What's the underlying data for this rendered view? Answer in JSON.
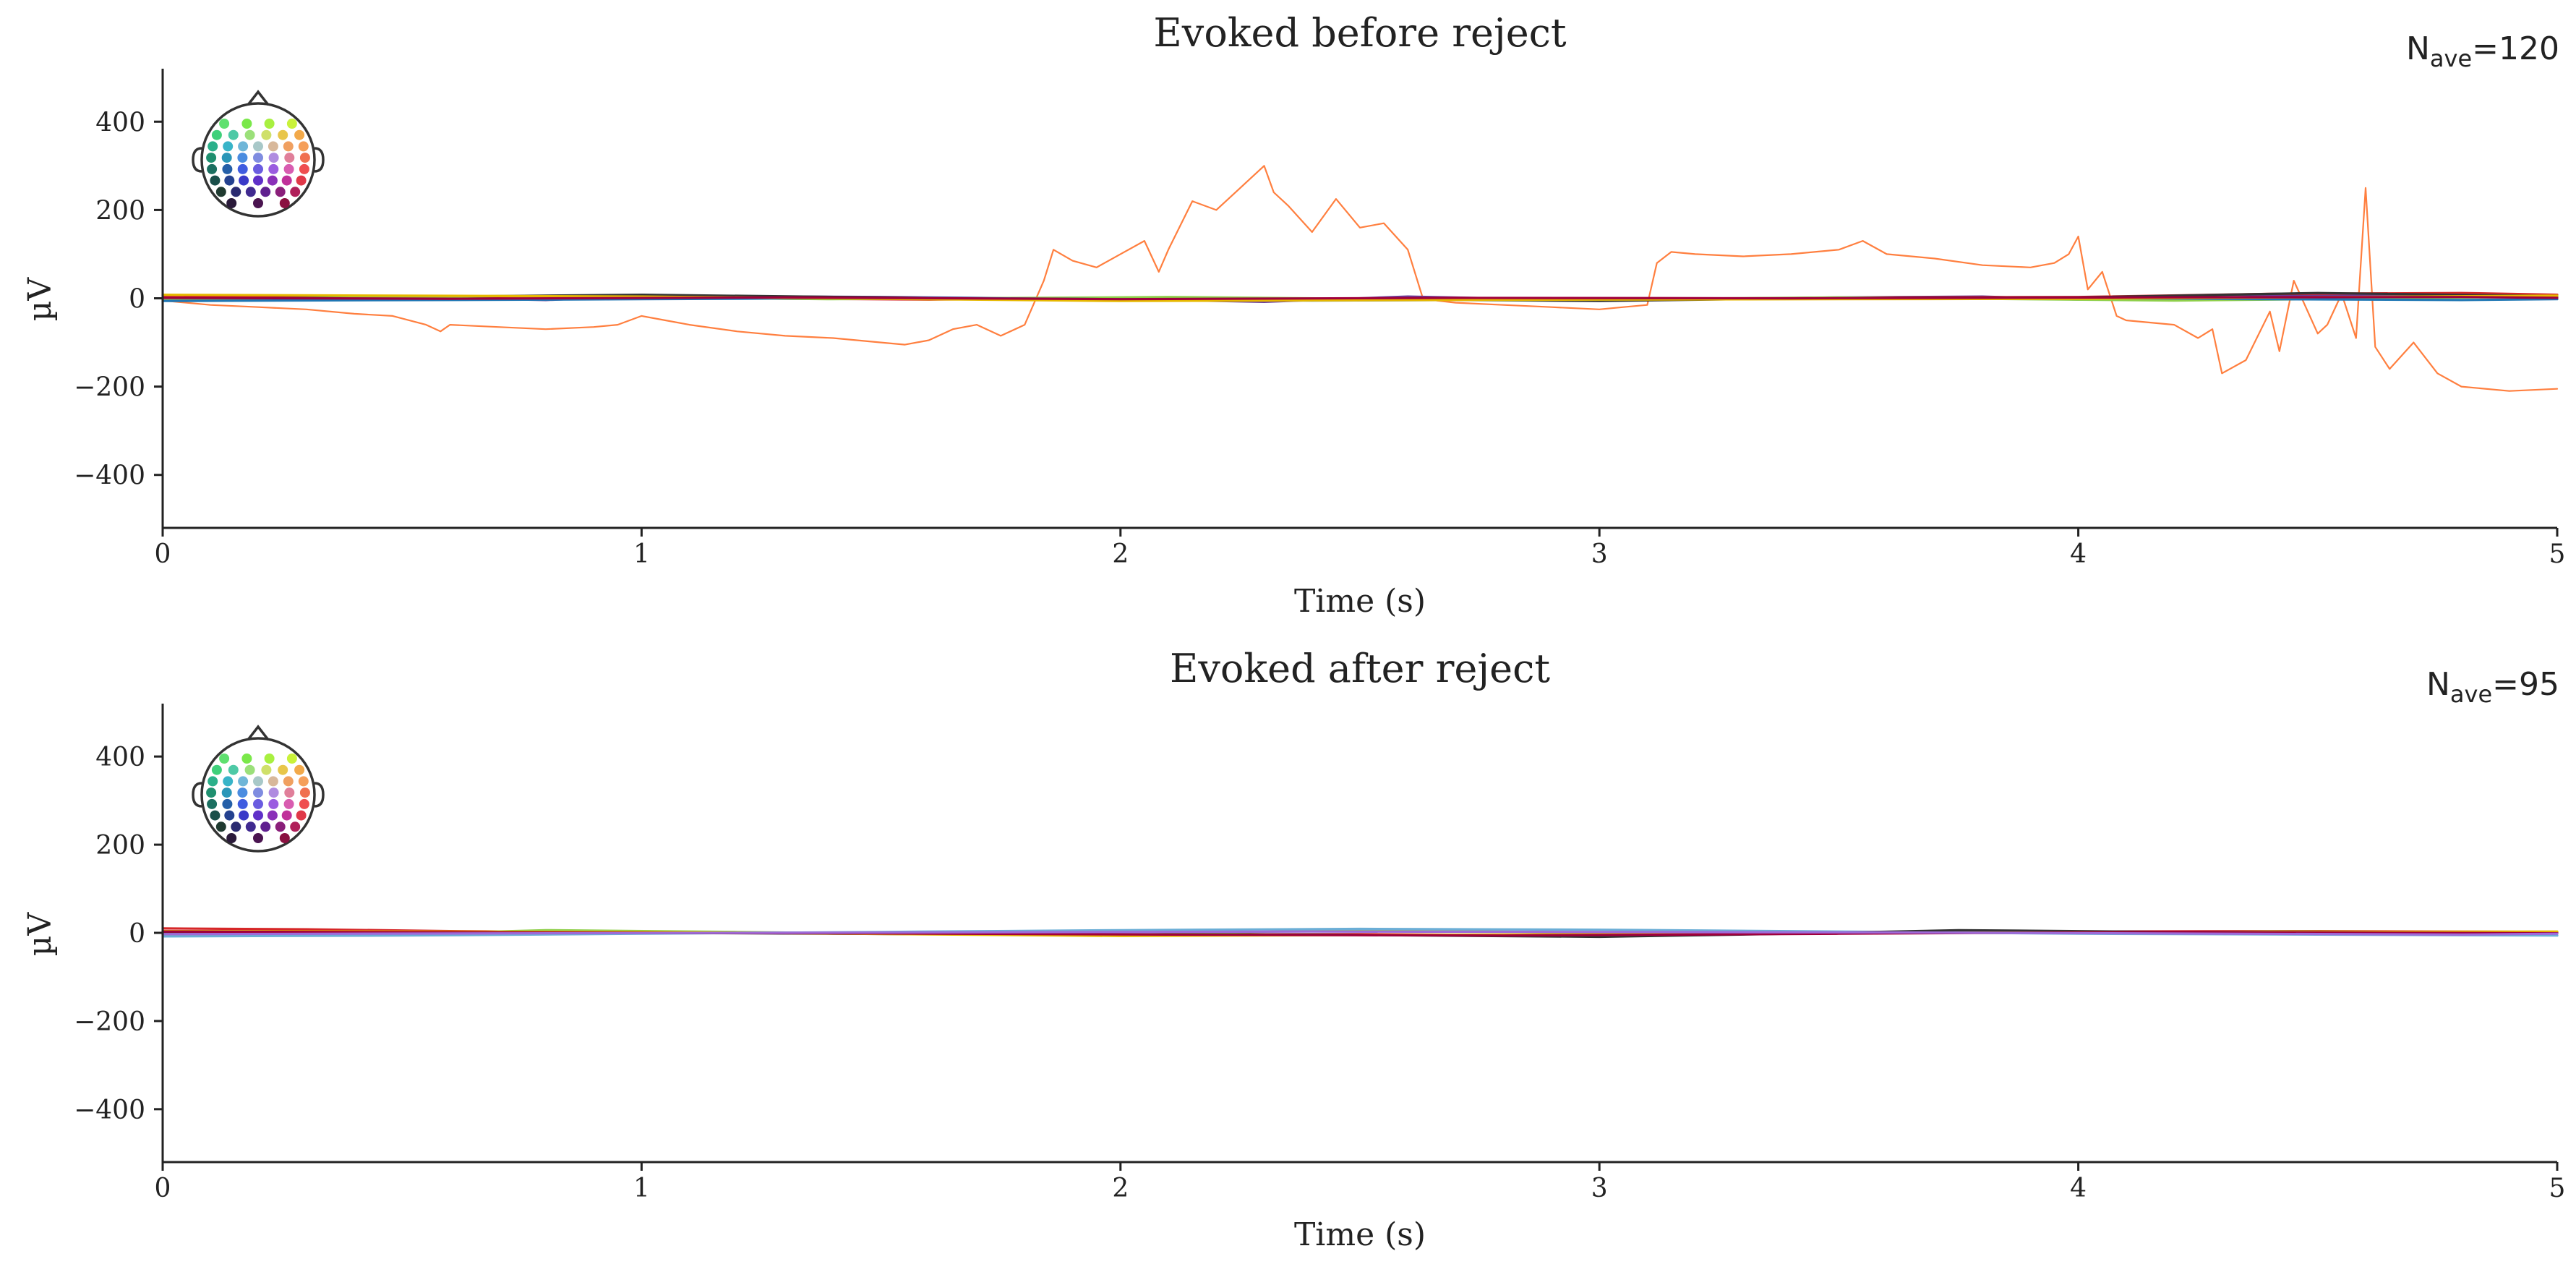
{
  "chart_data": [
    {
      "type": "line",
      "title": "Evoked before reject",
      "nave_label": "N",
      "nave_subscript": "ave",
      "nave_value": "=120",
      "xlabel": "Time (s)",
      "ylabel": "µV",
      "xlim": [
        0,
        5
      ],
      "ylim": [
        -520,
        520
      ],
      "xticks": [
        0,
        1,
        2,
        3,
        4,
        5
      ],
      "xtick_labels": [
        "0",
        "1",
        "2",
        "3",
        "4",
        "5"
      ],
      "yticks": [
        400,
        200,
        0,
        -200,
        -400
      ],
      "ytick_labels": [
        "400",
        "200",
        "0",
        "−200",
        "−400"
      ],
      "grid": false,
      "legend": "sensor-position inset, top-left",
      "series": [
        {
          "color": "#ff7f3f",
          "x": [
            0.0,
            0.1,
            0.2,
            0.3,
            0.4,
            0.48,
            0.55,
            0.58,
            0.6,
            0.7,
            0.8,
            0.9,
            0.95,
            1.0,
            1.05,
            1.1,
            1.2,
            1.3,
            1.4,
            1.5,
            1.55,
            1.6,
            1.65,
            1.7,
            1.75,
            1.8,
            1.84,
            1.86,
            1.9,
            1.95,
            2.0,
            2.05,
            2.08,
            2.1,
            2.15,
            2.2,
            2.25,
            2.3,
            2.32,
            2.35,
            2.4,
            2.45,
            2.5,
            2.55,
            2.6,
            2.63,
            2.66,
            2.7,
            2.8,
            2.9,
            3.0,
            3.05,
            3.1,
            3.12,
            3.15,
            3.2,
            3.3,
            3.4,
            3.5,
            3.55,
            3.6,
            3.7,
            3.8,
            3.9,
            3.95,
            3.98,
            4.0,
            4.02,
            4.05,
            4.08,
            4.1,
            4.2,
            4.25,
            4.28,
            4.3,
            4.35,
            4.4,
            4.42,
            4.45,
            4.5,
            4.52,
            4.55,
            4.58,
            4.6,
            4.62,
            4.65,
            4.7,
            4.75,
            4.8,
            4.9,
            5.0
          ],
          "y": [
            -5,
            -15,
            -20,
            -25,
            -35,
            -40,
            -60,
            -75,
            -60,
            -65,
            -70,
            -65,
            -60,
            -40,
            -50,
            -60,
            -75,
            -85,
            -90,
            -100,
            -105,
            -95,
            -70,
            -60,
            -85,
            -60,
            40,
            110,
            85,
            70,
            100,
            130,
            60,
            110,
            220,
            200,
            250,
            300,
            240,
            210,
            150,
            225,
            160,
            170,
            110,
            5,
            -5,
            -10,
            -15,
            -20,
            -25,
            -20,
            -15,
            80,
            105,
            100,
            95,
            100,
            110,
            130,
            100,
            90,
            75,
            70,
            80,
            100,
            140,
            20,
            60,
            -40,
            -50,
            -60,
            -90,
            -70,
            -170,
            -140,
            -30,
            -120,
            40,
            -80,
            -60,
            10,
            -90,
            250,
            -110,
            -160,
            -100,
            -170,
            -200,
            -210,
            -205
          ]
        },
        {
          "color": "#6a3d9a",
          "x": [
            0,
            0.5,
            0.8,
            1.0,
            1.5,
            2.0,
            2.3,
            2.6,
            3.0,
            3.5,
            3.8,
            4.0,
            4.3,
            4.6,
            5.0
          ],
          "y": [
            2,
            3,
            -4,
            5,
            3,
            -2,
            -8,
            4,
            -5,
            2,
            4,
            -3,
            8,
            6,
            3
          ]
        },
        {
          "color": "#d62728",
          "x": [
            0,
            0.4,
            0.8,
            1.2,
            1.6,
            2.0,
            2.4,
            2.8,
            3.2,
            3.6,
            4.0,
            4.4,
            4.8,
            5.0
          ],
          "y": [
            6,
            4,
            2,
            0,
            -3,
            1,
            -2,
            -4,
            -1,
            2,
            3,
            10,
            12,
            8
          ]
        },
        {
          "color": "#333333",
          "x": [
            0,
            0.5,
            1.0,
            1.5,
            2.0,
            2.5,
            3.0,
            3.5,
            4.0,
            4.5,
            5.0
          ],
          "y": [
            -2,
            3,
            8,
            2,
            -4,
            -2,
            -6,
            1,
            2,
            12,
            5
          ]
        },
        {
          "color": "#8ecf4a",
          "x": [
            0,
            0.7,
            1.4,
            2.1,
            2.8,
            3.5,
            4.2,
            5.0
          ],
          "y": [
            -3,
            5,
            -2,
            3,
            -4,
            2,
            -5,
            4
          ]
        },
        {
          "color": "#1f77b4",
          "x": [
            0,
            0.8,
            1.6,
            2.4,
            3.2,
            4.0,
            4.8,
            5.0
          ],
          "y": [
            -6,
            -3,
            1,
            -5,
            -2,
            0,
            -4,
            -2
          ]
        },
        {
          "color": "#e6b800",
          "x": [
            0,
            1.0,
            2.0,
            3.0,
            4.0,
            5.0
          ],
          "y": [
            8,
            4,
            -6,
            -3,
            -1,
            6
          ]
        },
        {
          "color": "#a0003c",
          "x": [
            0,
            0.6,
            1.3,
            2.0,
            2.7,
            3.4,
            4.1,
            4.8,
            5.0
          ],
          "y": [
            1,
            -1,
            2,
            -2,
            1,
            0,
            2,
            3,
            1
          ]
        }
      ]
    },
    {
      "type": "line",
      "title": "Evoked after reject",
      "nave_label": "N",
      "nave_subscript": "ave",
      "nave_value": "=95",
      "xlabel": "Time (s)",
      "ylabel": "µV",
      "xlim": [
        0,
        5
      ],
      "ylim": [
        -520,
        520
      ],
      "xticks": [
        0,
        1,
        2,
        3,
        4,
        5
      ],
      "xtick_labels": [
        "0",
        "1",
        "2",
        "3",
        "4",
        "5"
      ],
      "yticks": [
        400,
        200,
        0,
        -200,
        -400
      ],
      "ytick_labels": [
        "400",
        "200",
        "0",
        "−200",
        "−400"
      ],
      "grid": false,
      "legend": "sensor-position inset, top-left",
      "series": [
        {
          "color": "#d62728",
          "x": [
            0,
            0.3,
            0.6,
            1.0,
            1.5,
            2.0,
            2.5,
            3.0,
            3.5,
            4.0,
            4.5,
            5.0
          ],
          "y": [
            10,
            8,
            4,
            1,
            -2,
            -4,
            -3,
            -6,
            0,
            3,
            4,
            2
          ]
        },
        {
          "color": "#8ecf4a",
          "x": [
            0,
            0.4,
            0.8,
            1.2,
            1.6,
            2.0,
            2.4,
            2.8,
            3.2,
            3.6,
            4.0,
            4.4,
            4.8,
            5.0
          ],
          "y": [
            -4,
            -6,
            6,
            2,
            -3,
            -5,
            5,
            3,
            -2,
            1,
            -1,
            3,
            2,
            1
          ]
        },
        {
          "color": "#6baed6",
          "x": [
            0,
            0.5,
            1.0,
            1.5,
            2.0,
            2.5,
            3.0,
            3.5,
            4.0,
            4.5,
            5.0
          ],
          "y": [
            -8,
            -6,
            -2,
            2,
            6,
            9,
            7,
            3,
            -2,
            -4,
            -6
          ]
        },
        {
          "color": "#333333",
          "x": [
            0,
            0.8,
            1.6,
            2.4,
            3.0,
            3.4,
            3.75,
            4.2,
            4.6,
            5.0
          ],
          "y": [
            2,
            1,
            -3,
            -4,
            -9,
            -2,
            6,
            2,
            1,
            0
          ]
        },
        {
          "color": "#e6b800",
          "x": [
            0,
            1.0,
            2.0,
            3.0,
            4.0,
            5.0
          ],
          "y": [
            4,
            2,
            -7,
            -3,
            1,
            3
          ]
        },
        {
          "color": "#a0003c",
          "x": [
            0,
            0.7,
            1.4,
            2.1,
            2.8,
            3.5,
            4.2,
            5.0
          ],
          "y": [
            3,
            1,
            -1,
            -4,
            -6,
            -2,
            2,
            -1
          ]
        },
        {
          "color": "#9e6ad8",
          "x": [
            0,
            1.2,
            2.4,
            3.6,
            4.8,
            5.0
          ],
          "y": [
            -3,
            0,
            3,
            1,
            -4,
            -2
          ]
        }
      ]
    }
  ],
  "head_inset": {
    "colors": {
      "outline": "#333333",
      "sensor_rows": [
        [
          "#5fe06f",
          "#7ae84a",
          "#a8f040",
          "#c9f23a"
        ],
        [
          "#3fd07a",
          "#4ec9a6",
          "#9be07a",
          "#cfe06a",
          "#e8c64a",
          "#f2a94a"
        ],
        [
          "#2bb08a",
          "#38b4c8",
          "#6fb6d8",
          "#a8c8c8",
          "#d8b89a",
          "#f0a060",
          "#f59f5a"
        ],
        [
          "#1f8f6f",
          "#2a96b8",
          "#4a8ce0",
          "#7f8ce0",
          "#b08ce0",
          "#e07f9a",
          "#f07050"
        ],
        [
          "#1b6f60",
          "#245fa8",
          "#3f5ce0",
          "#6a5ce0",
          "#9a5ce0",
          "#d85cb0",
          "#ef4e50"
        ],
        [
          "#1a4f4a",
          "#24418f",
          "#3a3ac8",
          "#5f30c8",
          "#8a30b8",
          "#c0309a",
          "#e03848"
        ],
        [
          "#1f3a30",
          "#2a2a70",
          "#402a90",
          "#60208f",
          "#8a1f7a",
          "#b0205a"
        ],
        [
          "#2a1a3a",
          "#4a1450",
          "#8a1040"
        ]
      ]
    }
  }
}
